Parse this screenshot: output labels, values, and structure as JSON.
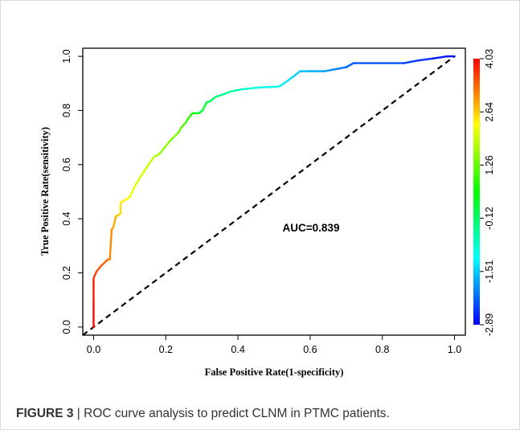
{
  "chart_data": {
    "type": "line",
    "title": "",
    "xlabel": "False Positive Rate(1-specificity)",
    "ylabel": "True Positive Rate(sensitivity)",
    "xlim": [
      -0.03,
      1.03
    ],
    "ylim": [
      -0.03,
      1.03
    ],
    "xticks": [
      "0.0",
      "0.2",
      "0.4",
      "0.6",
      "0.8",
      "1.0"
    ],
    "yticks": [
      "0.0",
      "0.2",
      "0.4",
      "0.6",
      "0.8",
      "1.0"
    ],
    "annotation": "AUC=0.839",
    "grid": false,
    "series": [
      {
        "name": "",
        "x": [
          0.0,
          0.0,
          0.0,
          0.0,
          0.008,
          0.02,
          0.04,
          0.045,
          0.05,
          0.055,
          0.062,
          0.065,
          0.075,
          0.075,
          0.088,
          0.1,
          0.118,
          0.142,
          0.168,
          0.178,
          0.186,
          0.21,
          0.236,
          0.242,
          0.247,
          0.255,
          0.262,
          0.27,
          0.276,
          0.282,
          0.292,
          0.302,
          0.313,
          0.322,
          0.33,
          0.338,
          0.36,
          0.38,
          0.398,
          0.41,
          0.43,
          0.46,
          0.512,
          0.52,
          0.538,
          0.556,
          0.572,
          0.6,
          0.64,
          0.66,
          0.68,
          0.7,
          0.72,
          0.86,
          0.9,
          0.94,
          0.98,
          1.0
        ],
        "y": [
          0.0,
          0.105,
          0.18,
          0.18,
          0.205,
          0.225,
          0.25,
          0.25,
          0.36,
          0.37,
          0.41,
          0.41,
          0.42,
          0.46,
          0.47,
          0.48,
          0.53,
          0.58,
          0.63,
          0.635,
          0.645,
          0.685,
          0.72,
          0.735,
          0.743,
          0.755,
          0.77,
          0.785,
          0.79,
          0.79,
          0.79,
          0.8,
          0.83,
          0.833,
          0.842,
          0.85,
          0.86,
          0.87,
          0.875,
          0.878,
          0.881,
          0.885,
          0.888,
          0.893,
          0.91,
          0.928,
          0.945,
          0.945,
          0.945,
          0.95,
          0.955,
          0.96,
          0.975,
          0.975,
          0.985,
          0.992,
          1.0,
          1.0
        ],
        "threshold_range": [
          -2.89,
          4.03
        ]
      },
      {
        "name": "",
        "style": "dashed",
        "x": [
          -0.03,
          1.0
        ],
        "y": [
          -0.03,
          1.0
        ]
      }
    ],
    "colorbar": {
      "ticks": [
        "4.03",
        "2.64",
        "1.26",
        "-0.12",
        "-1.51",
        "-2.89"
      ],
      "range": [
        -2.89,
        4.03
      ],
      "colors": [
        "#ff0000",
        "#ffff00",
        "#00ff00",
        "#00ffff",
        "#0000ff"
      ]
    }
  },
  "caption": {
    "label": "FIGURE 3",
    "text": " | ROC curve analysis to predict CLNM in PTMC patients."
  }
}
